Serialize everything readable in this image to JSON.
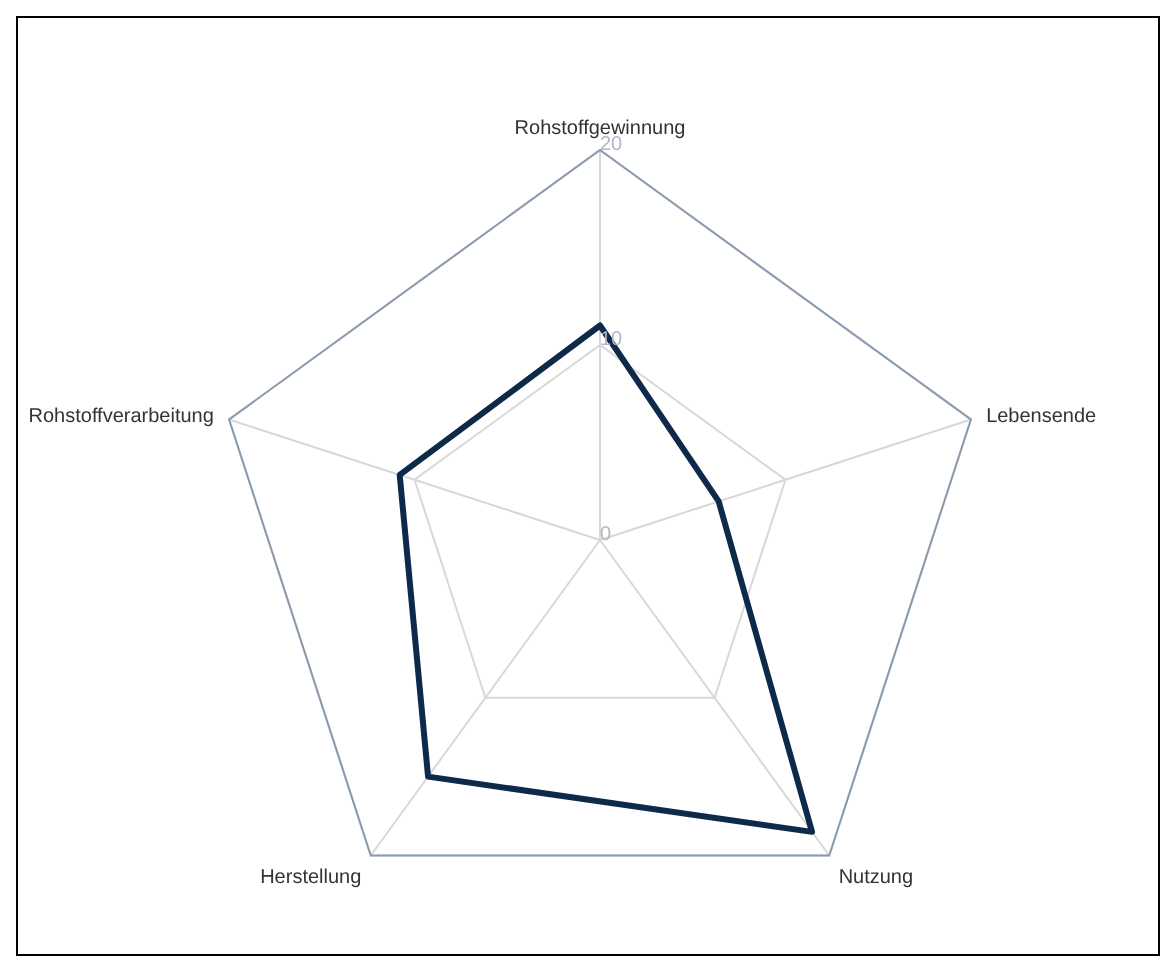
{
  "chart_data": {
    "type": "radar",
    "categories": [
      "Rohstoffgewinnung",
      "Lebensende",
      "Nutzung",
      "Herstellung",
      "Rohstoffverarbeitung"
    ],
    "series": [
      {
        "color": "#0d2a4a",
        "values": [
          11,
          6.4,
          18.5,
          15,
          10.8
        ]
      }
    ],
    "ylim": [
      0,
      20
    ],
    "yticks": [
      0,
      10,
      20
    ],
    "grid": true,
    "marker": "none"
  }
}
